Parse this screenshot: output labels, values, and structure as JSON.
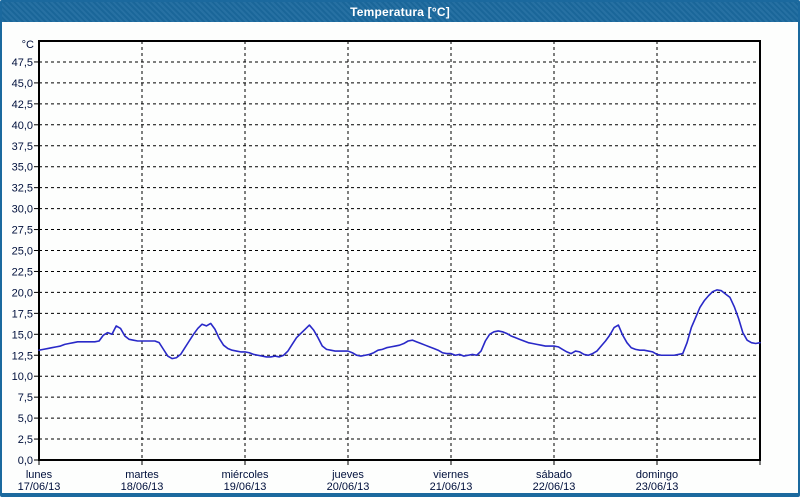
{
  "window": {
    "title": "Temperatura [°C]",
    "title_bar_color": "#1B699E",
    "border_color": "#1B699E",
    "background_color": "#FDFEFD"
  },
  "chart_data": {
    "type": "line",
    "title": "Temperatura [°C]",
    "y_axis": {
      "unit_label": "°C",
      "min": 0,
      "max": 50,
      "tick_step": 2.5,
      "tick_labels_top_to_bottom": [
        "47,5",
        "45,0",
        "42,5",
        "40,0",
        "37,5",
        "35,0",
        "32,5",
        "30,0",
        "27,5",
        "25,0",
        "22,5",
        "20,0",
        "17,5",
        "15,0",
        "12,5",
        "10,0",
        "7,5",
        "5,0",
        "2,5",
        "0,0"
      ],
      "tick_values_top_to_bottom": [
        47.5,
        45.0,
        42.5,
        40.0,
        37.5,
        35.0,
        32.5,
        30.0,
        27.5,
        25.0,
        22.5,
        20.0,
        17.5,
        15.0,
        12.5,
        10.0,
        7.5,
        5.0,
        2.5,
        0.0
      ]
    },
    "x_axis": {
      "days": [
        {
          "name": "lunes",
          "date": "17/06/13"
        },
        {
          "name": "martes",
          "date": "18/06/13"
        },
        {
          "name": "miércoles",
          "date": "19/06/13"
        },
        {
          "name": "jueves",
          "date": "20/06/13"
        },
        {
          "name": "viernes",
          "date": "21/06/13"
        },
        {
          "name": "sábado",
          "date": "22/06/13"
        },
        {
          "name": "domingo",
          "date": "23/06/13"
        }
      ]
    },
    "grid": {
      "horizontal_dashed": true,
      "vertical_dashed": true,
      "color": "#000000"
    },
    "legend": "none",
    "series": [
      {
        "name": "Temperatura",
        "color": "#2929C8",
        "samples_per_day": 24,
        "values": [
          13.1,
          13.2,
          13.3,
          13.4,
          13.5,
          13.6,
          13.8,
          13.9,
          14.0,
          14.1,
          14.1,
          14.1,
          14.1,
          14.1,
          14.2,
          14.9,
          15.2,
          15.0,
          16.0,
          15.7,
          14.8,
          14.4,
          14.3,
          14.2,
          14.2,
          14.2,
          14.2,
          14.2,
          14.0,
          13.2,
          12.4,
          12.1,
          12.2,
          12.6,
          13.4,
          14.2,
          15.0,
          15.7,
          16.2,
          16.0,
          16.3,
          15.6,
          14.5,
          13.7,
          13.3,
          13.1,
          13.0,
          12.9,
          12.9,
          12.8,
          12.6,
          12.5,
          12.4,
          12.3,
          12.3,
          12.4,
          12.3,
          12.5,
          13.0,
          13.8,
          14.6,
          15.1,
          15.6,
          16.1,
          15.5,
          14.6,
          13.6,
          13.2,
          13.1,
          13.0,
          13.0,
          13.0,
          13.0,
          12.8,
          12.5,
          12.4,
          12.5,
          12.6,
          12.8,
          13.1,
          13.2,
          13.4,
          13.5,
          13.6,
          13.7,
          13.9,
          14.2,
          14.3,
          14.1,
          13.9,
          13.7,
          13.5,
          13.3,
          13.1,
          12.8,
          12.7,
          12.7,
          12.5,
          12.6,
          12.4,
          12.5,
          12.6,
          12.5,
          13.0,
          14.2,
          15.0,
          15.3,
          15.4,
          15.3,
          15.1,
          14.8,
          14.6,
          14.4,
          14.2,
          14.0,
          13.9,
          13.8,
          13.7,
          13.6,
          13.6,
          13.6,
          13.5,
          13.2,
          12.9,
          12.7,
          13.0,
          12.9,
          12.6,
          12.5,
          12.7,
          13.0,
          13.6,
          14.2,
          14.9,
          15.8,
          16.1,
          14.9,
          14.0,
          13.4,
          13.2,
          13.1,
          13.1,
          13.0,
          12.9,
          12.6,
          12.5,
          12.5,
          12.5,
          12.5,
          12.6,
          12.7,
          14.0,
          15.8,
          17.0,
          18.2,
          19.0,
          19.6,
          20.1,
          20.3,
          20.2,
          19.8,
          19.4,
          18.3,
          16.9,
          15.2,
          14.3,
          14.0,
          13.9,
          14.0
        ]
      }
    ]
  }
}
